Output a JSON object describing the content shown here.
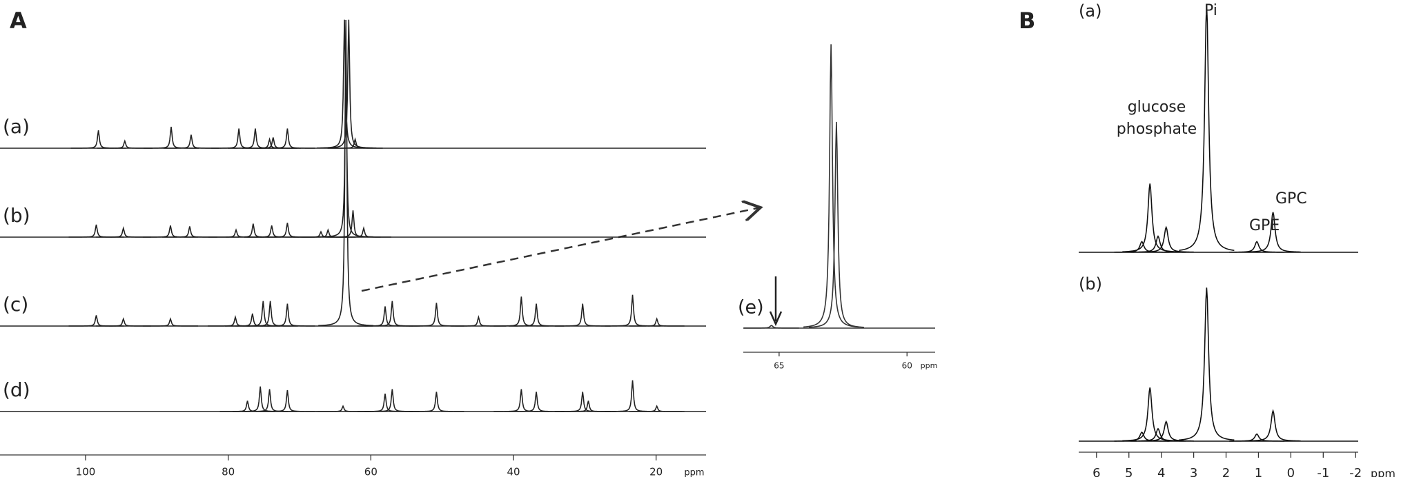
{
  "chart_data": [
    {
      "type": "spectrum",
      "title": "A",
      "xlabel": "ppm",
      "color": "#222222",
      "xlim": [
        112,
        13
      ],
      "xticks": [
        100,
        80,
        60,
        40,
        20
      ],
      "series": [
        {
          "name": "(a)",
          "x": [
            98.2,
            94.5,
            88,
            85.2,
            78.5,
            76.2,
            74.2,
            73.7,
            71.7,
            63.7,
            63.1,
            62.2
          ],
          "values": [
            20,
            8,
            24,
            15,
            22,
            22,
            10,
            12,
            22,
            144,
            144,
            10
          ]
        },
        {
          "name": "(b)",
          "x": [
            98.5,
            94.7,
            88.1,
            85.4,
            78.9,
            76.5,
            73.9,
            71.7,
            67,
            66,
            63.5,
            62.5,
            61
          ],
          "values": [
            14,
            10,
            13,
            12,
            8,
            15,
            13,
            16,
            6,
            8,
            178,
            30,
            10
          ]
        },
        {
          "name": "(c)",
          "x": [
            98.5,
            94.7,
            88.1,
            79,
            76.6,
            75.1,
            74.1,
            71.7,
            63.5,
            58,
            57,
            50.8,
            44.9,
            38.9,
            36.8,
            30.3,
            23.3,
            19.9
          ],
          "values": [
            12,
            8,
            8,
            10,
            14,
            28,
            28,
            25,
            343,
            22,
            28,
            26,
            10,
            33,
            25,
            25,
            35,
            8
          ]
        },
        {
          "name": "(d)",
          "x": [
            77.3,
            75.5,
            74.2,
            71.7,
            63.9,
            58,
            57,
            50.8,
            38.9,
            36.8,
            30.3,
            29.5,
            23.3,
            19.9
          ],
          "values": [
            12,
            28,
            25,
            24,
            6,
            20,
            25,
            22,
            25,
            22,
            22,
            12,
            35,
            6
          ]
        }
      ]
    },
    {
      "type": "spectrum",
      "xlabel": "ppm",
      "color": "#333333",
      "xlim": [
        66.4,
        58.9
      ],
      "xticks": [
        65,
        60
      ],
      "series": [
        {
          "name": "(e)",
          "x": [
            65.3,
            62.97,
            62.76
          ],
          "values": [
            3,
            318,
            231
          ]
        }
      ]
    },
    {
      "type": "spectrum",
      "title": "B",
      "xlabel": "ppm",
      "color": "#111111",
      "xlim": [
        6.55,
        -2.08
      ],
      "xticks": [
        6,
        5,
        4,
        3,
        2,
        1,
        0,
        -1,
        -2
      ],
      "annotations": [
        "Pi",
        "glucose phosphate",
        "GPE",
        "GPC"
      ],
      "series": [
        {
          "name": "(a)",
          "x": [
            4.6,
            4.35,
            4.1,
            3.85,
            2.6,
            1.05,
            0.55
          ],
          "values": [
            12,
            77,
            18,
            28,
            278,
            12,
            45
          ]
        },
        {
          "name": "(b)",
          "x": [
            4.6,
            4.35,
            4.1,
            3.85,
            2.6,
            1.05,
            0.55
          ],
          "values": [
            10,
            60,
            14,
            22,
            172,
            8,
            34
          ]
        }
      ]
    }
  ]
}
